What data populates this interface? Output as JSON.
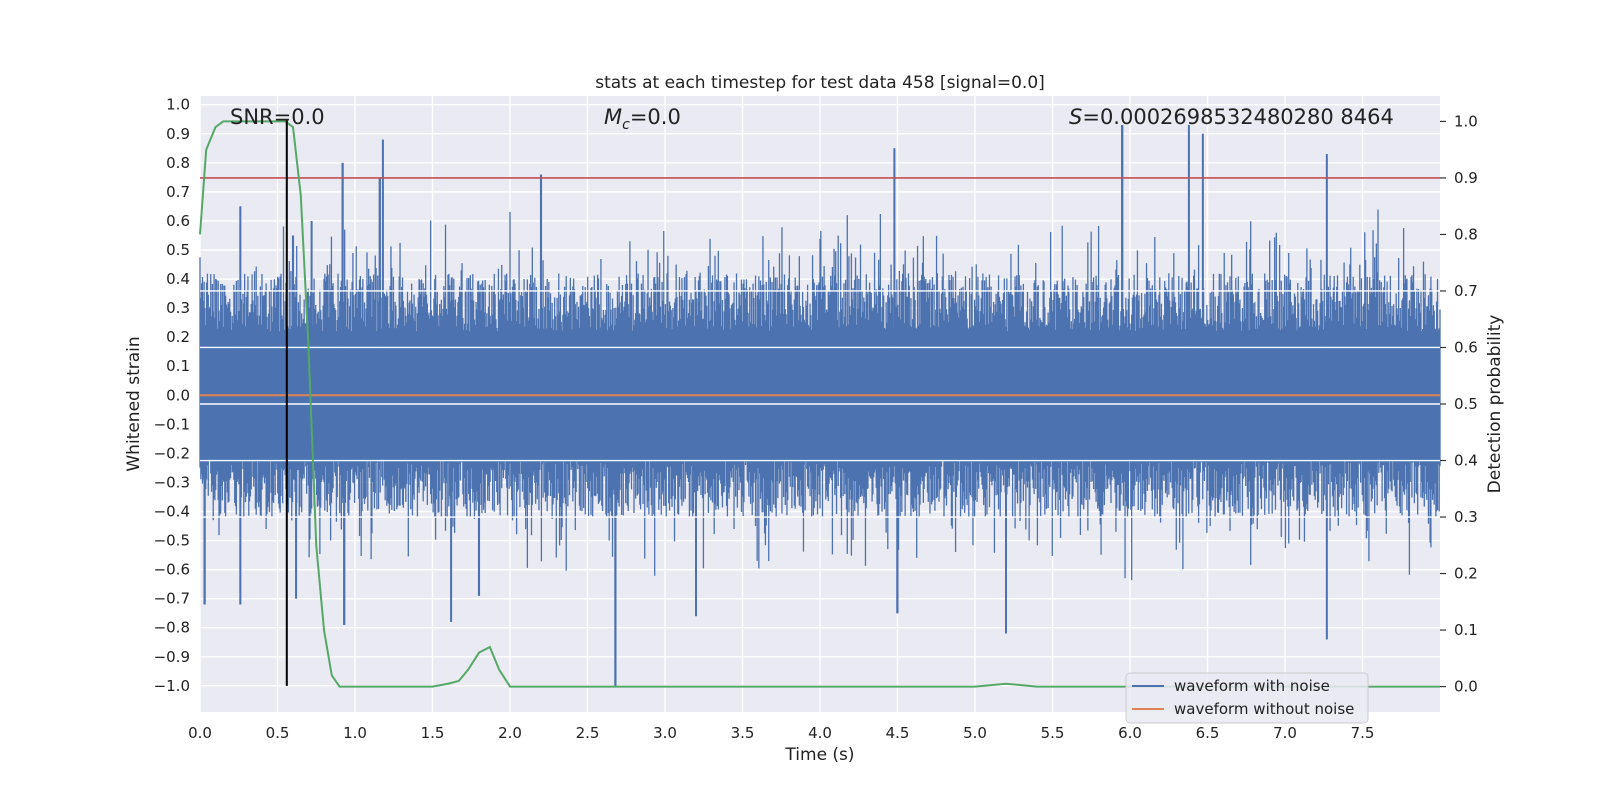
{
  "chart_data": {
    "type": "line",
    "title": "stats at each timestep for test data 458 [signal=0.0]",
    "xlabel": "Time (s)",
    "ylabel": "Whitened strain",
    "y2label": "Detection probability",
    "xlim": [
      0.0,
      8.0
    ],
    "ylim": [
      -1.09,
      1.03
    ],
    "y2lim": [
      -0.045,
      1.045
    ],
    "xticks": [
      "0.0",
      "0.5",
      "1.0",
      "1.5",
      "2.0",
      "2.5",
      "3.0",
      "3.5",
      "4.0",
      "4.5",
      "5.0",
      "5.5",
      "6.0",
      "6.5",
      "7.0",
      "7.5"
    ],
    "yticks": [
      "1.0",
      "0.9",
      "0.8",
      "0.7",
      "0.6",
      "0.5",
      "0.4",
      "0.3",
      "0.2",
      "0.1",
      "0.0",
      "−0.1",
      "−0.2",
      "−0.3",
      "−0.4",
      "−0.5",
      "−0.6",
      "−0.7",
      "−0.8",
      "−0.9",
      "−1.0"
    ],
    "y2ticks": [
      "1.0",
      "0.9",
      "0.8",
      "0.7",
      "0.6",
      "0.5",
      "0.4",
      "0.3",
      "0.2",
      "0.1",
      "0.0"
    ],
    "grid": true,
    "legend_position": "bottom-right",
    "annotations": {
      "snr": "SNR=0.0",
      "mc_symbol": "M",
      "mc_sub": "c",
      "mc_value": "=0.0",
      "s_symbol": "S",
      "s_value": "=0.0002698532480280 8464"
    },
    "series": [
      {
        "name": "waveform with noise",
        "axis": "left",
        "color": "#4c72b0",
        "style": "dense noise envelope",
        "typical_range": [
          -0.45,
          0.45
        ],
        "peaks": [
          {
            "x": 0.26,
            "y": 0.65
          },
          {
            "x": 0.6,
            "y": 0.55
          },
          {
            "x": 0.72,
            "y": 0.6
          },
          {
            "x": 0.92,
            "y": 0.8
          },
          {
            "x": 1.18,
            "y": 0.88
          },
          {
            "x": 1.16,
            "y": 0.75
          },
          {
            "x": 2.2,
            "y": 0.76
          },
          {
            "x": 4.48,
            "y": 0.85
          },
          {
            "x": 5.95,
            "y": 0.93
          },
          {
            "x": 6.38,
            "y": 0.93
          },
          {
            "x": 6.47,
            "y": 0.9
          },
          {
            "x": 7.27,
            "y": 0.83
          }
        ],
        "troughs": [
          {
            "x": 0.03,
            "y": -0.72
          },
          {
            "x": 0.26,
            "y": -0.72
          },
          {
            "x": 0.62,
            "y": -0.7
          },
          {
            "x": 0.93,
            "y": -0.79
          },
          {
            "x": 1.62,
            "y": -0.78
          },
          {
            "x": 1.8,
            "y": -0.69
          },
          {
            "x": 2.68,
            "y": -1.0
          },
          {
            "x": 3.2,
            "y": -0.76
          },
          {
            "x": 4.5,
            "y": -0.75
          },
          {
            "x": 5.2,
            "y": -0.82
          },
          {
            "x": 7.27,
            "y": -0.84
          }
        ]
      },
      {
        "name": "waveform without noise",
        "axis": "left",
        "color": "#dd8452",
        "x": [
          0.0,
          8.0
        ],
        "y": [
          0.0,
          0.0
        ]
      },
      {
        "name": "",
        "axis": "right",
        "color": "#55a868",
        "x": [
          0.0,
          0.04,
          0.1,
          0.15,
          0.2,
          0.3,
          0.4,
          0.5,
          0.55,
          0.6,
          0.65,
          0.7,
          0.75,
          0.8,
          0.85,
          0.9,
          1.0,
          1.5,
          1.6,
          1.67,
          1.73,
          1.8,
          1.87,
          1.93,
          2.0,
          2.1,
          3.0,
          4.0,
          5.0,
          5.2,
          5.4,
          6.0,
          7.0,
          8.0
        ],
        "y": [
          0.8,
          0.95,
          0.99,
          1.0,
          1.0,
          1.0,
          1.0,
          1.0,
          1.0,
          0.99,
          0.87,
          0.6,
          0.25,
          0.1,
          0.02,
          0.0,
          0.0,
          0.0,
          0.005,
          0.01,
          0.03,
          0.06,
          0.07,
          0.03,
          0.0,
          0.0,
          0.0,
          0.0,
          0.0,
          0.005,
          0.0,
          0.0,
          0.0,
          0.0
        ]
      }
    ],
    "threshold_line": {
      "axis": "right",
      "value": 0.9,
      "color": "#c44e52"
    },
    "marker_line": {
      "x": 0.56,
      "y_from": -1.0,
      "y_to": 0.95,
      "color": "#000000"
    },
    "legend": [
      {
        "label": "waveform with noise",
        "color": "#4c72b0"
      },
      {
        "label": "waveform without noise",
        "color": "#dd8452"
      }
    ]
  }
}
